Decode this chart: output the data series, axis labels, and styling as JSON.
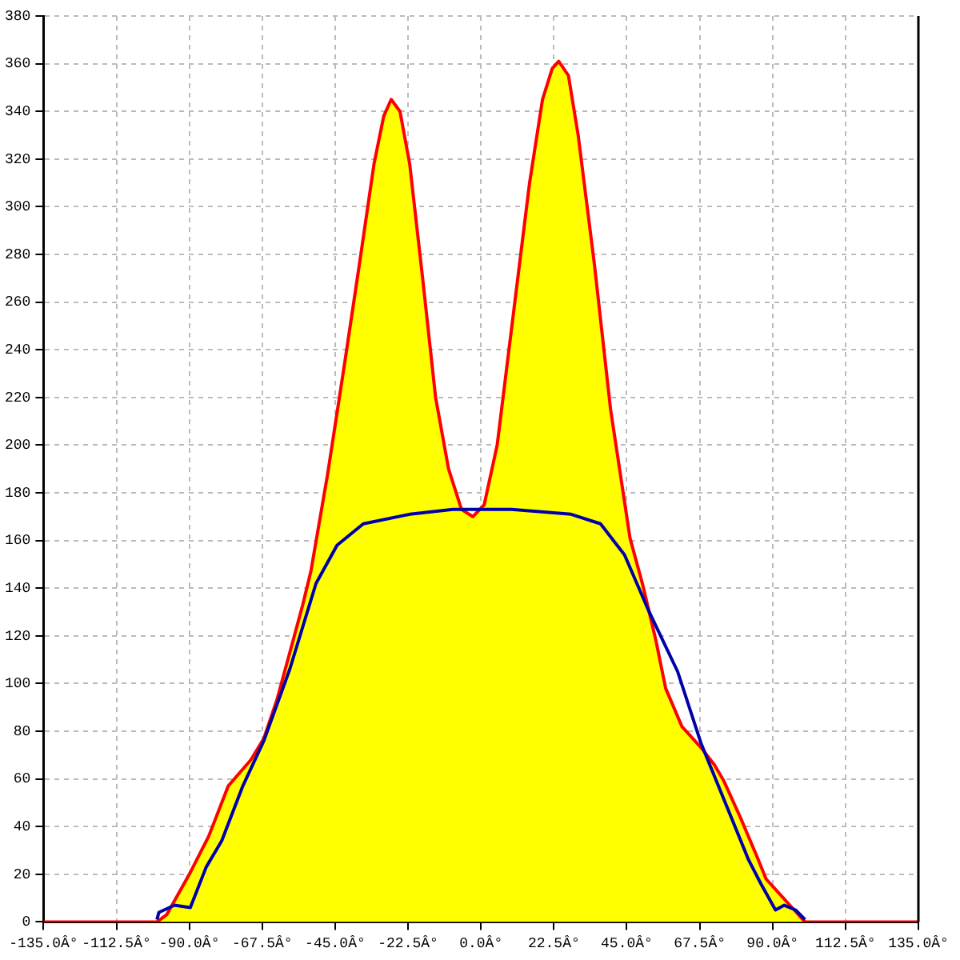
{
  "chart_data": {
    "type": "line",
    "xlim": [
      -135,
      135
    ],
    "xticks": [
      {
        "value": -135,
        "label": "-135.0Â°"
      },
      {
        "value": -112.5,
        "label": "-112.5Â°"
      },
      {
        "value": -90,
        "label": "-90.0Â°"
      },
      {
        "value": -67.5,
        "label": "-67.5Â°"
      },
      {
        "value": -45,
        "label": "-45.0Â°"
      },
      {
        "value": -22.5,
        "label": "-22.5Â°"
      },
      {
        "value": 0,
        "label": "0.0Â°"
      },
      {
        "value": 22.5,
        "label": "22.5Â°"
      },
      {
        "value": 45,
        "label": "45.0Â°"
      },
      {
        "value": 67.5,
        "label": "67.5Â°"
      },
      {
        "value": 90,
        "label": "90.0Â°"
      },
      {
        "value": 112.5,
        "label": "112.5Â°"
      },
      {
        "value": 135,
        "label": "135.0Â°"
      }
    ],
    "ylim": [
      0,
      380
    ],
    "yticks": [
      0,
      20,
      40,
      60,
      80,
      100,
      120,
      140,
      160,
      180,
      200,
      220,
      240,
      260,
      280,
      300,
      320,
      340,
      360,
      380
    ],
    "grid": true,
    "line_style": "solid",
    "legend": false,
    "series": [
      {
        "type": "area",
        "color": "#ffff00",
        "x": [
          -135,
          -100,
          -97,
          -90,
          -84,
          -78,
          -71,
          -67,
          -63,
          -59,
          -55,
          -52.5,
          -47.3,
          -42,
          -37.5,
          -33,
          -30,
          -27.7,
          -25,
          -22,
          -18,
          -14,
          -10,
          -6,
          -2.5,
          1,
          5,
          10,
          15,
          19,
          22,
          24,
          27,
          30,
          35,
          40,
          46,
          50,
          54,
          57,
          62,
          68,
          72,
          75,
          80,
          85,
          88,
          92,
          96,
          100,
          135
        ],
        "values": [
          0,
          0,
          3,
          20,
          36,
          57,
          68,
          77,
          93,
          113,
          133,
          147,
          188,
          235,
          276,
          318,
          338,
          345,
          340,
          318,
          270,
          220,
          190,
          173,
          170,
          175,
          200,
          255,
          310,
          345,
          358,
          361,
          355,
          330,
          276,
          215,
          161,
          141,
          118,
          98,
          82,
          73,
          66,
          59,
          44,
          28,
          18,
          12,
          6,
          0,
          0
        ]
      },
      {
        "type": "line",
        "color": "#0000aa",
        "x": [
          -100,
          -99.4,
          -94.6,
          -89.7,
          -84.8,
          -80,
          -73.5,
          -67,
          -59,
          -50.9,
          -44.4,
          -36.3,
          -21.9,
          -8.7,
          0,
          9.5,
          27.8,
          36.9,
          44.3,
          51.6,
          60.7,
          67.9,
          77.2,
          82.6,
          86.4,
          90.9,
          93.6,
          97.1,
          100
        ],
        "values": [
          1,
          4,
          7,
          6,
          23,
          34,
          57,
          76,
          106,
          142,
          158,
          167,
          171,
          173,
          173,
          173,
          171,
          167,
          154,
          131,
          105,
          75,
          44,
          26,
          16,
          5,
          7,
          5,
          1
        ]
      }
    ]
  }
}
